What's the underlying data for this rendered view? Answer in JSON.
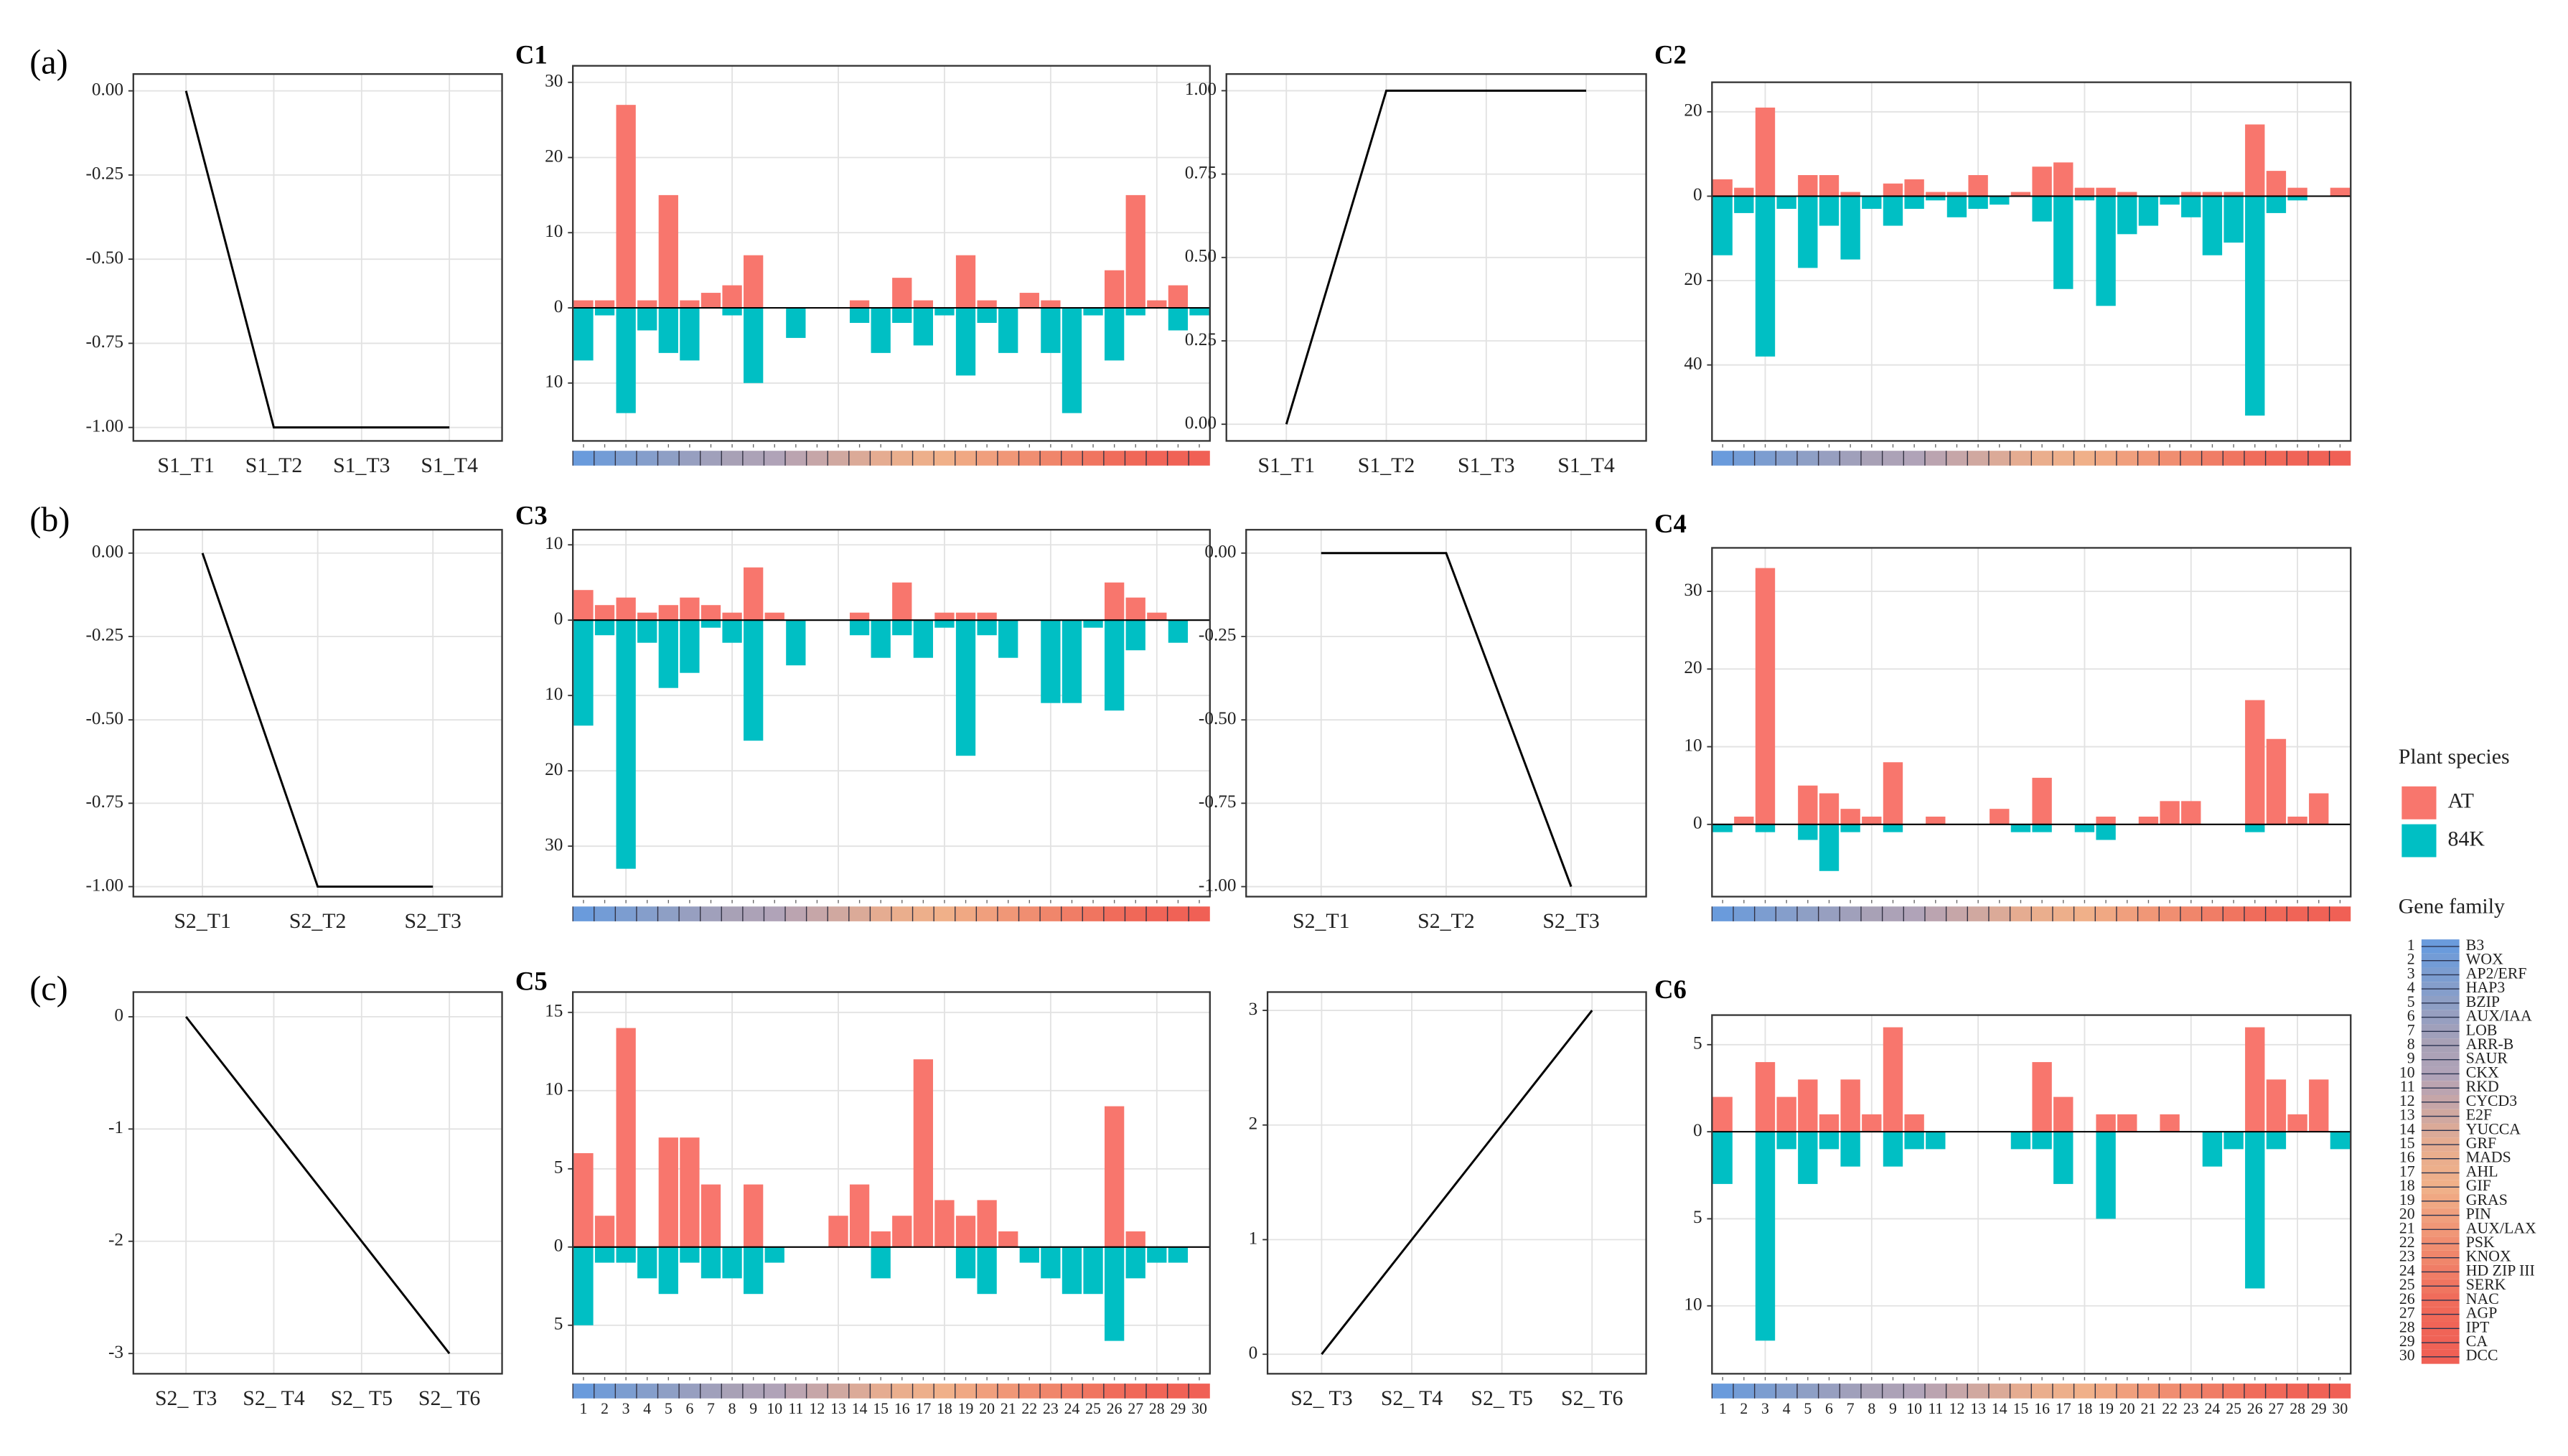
{
  "panel_labels": [
    "(a)",
    "(b)",
    "(c)"
  ],
  "legend": {
    "title": "Plant species"
  },
  "gene_family": {
    "title": "Gene family",
    "numbers": [
      1,
      2,
      3,
      4,
      5,
      6,
      7,
      8,
      9,
      10,
      11,
      12,
      13,
      14,
      15,
      16,
      17,
      18,
      19,
      20,
      21,
      22,
      23,
      24,
      25,
      26,
      27,
      28,
      29,
      30
    ],
    "names": [
      "B3",
      "WOX",
      "AP2/ERF",
      "HAP3",
      "BZIP",
      "AUX/IAA",
      "LOB",
      "ARR-B",
      "SAUR",
      "CKX",
      "RKD",
      "CYCD3",
      "E2F",
      "YUCCA",
      "GRF",
      "MADS",
      "AHL",
      "GIF",
      "GRAS",
      "PIN",
      "AUX/LAX",
      "PSK",
      "KNOX",
      "HD ZIP III",
      "SERK",
      "NAC",
      "AGP",
      "IPT",
      "CA",
      "DCC"
    ],
    "colors": [
      "#6a9bdc",
      "#739cd6",
      "#7c9dd0",
      "#859ecb",
      "#8e9fc5",
      "#979fc0",
      "#a0a0bb",
      "#a8a1b6",
      "#aca2b7",
      "#b0a3b8",
      "#bba4b0",
      "#c6a6a8",
      "#d0a8a0",
      "#dbaa98",
      "#e5ac91",
      "#eaae8d",
      "#edaf8b",
      "#f0b089",
      "#f0a883",
      "#f09f7d",
      "#f09777",
      "#f08e71",
      "#f0866b",
      "#f07d66",
      "#f07560",
      "#f06c5b",
      "#f06858",
      "#f06457",
      "#f06256",
      "#f06055"
    ]
  },
  "chart_data": [
    {
      "type": "line",
      "categories": [
        "S1_T1",
        "S1_T2",
        "S1_T3",
        "S1_T4"
      ],
      "values": [
        0,
        -1,
        -1,
        -1
      ],
      "color": "#000000",
      "ylim": [
        -1.04,
        0.05
      ],
      "yticks": [
        {
          "value": -1,
          "label": "-1.00"
        },
        -0.75,
        {
          "value": -0.5,
          "label": "-0.50"
        },
        -0.25,
        {
          "value": 0,
          "label": "0.00"
        }
      ],
      "grid": true
    },
    {
      "type": "bar",
      "title": "C1",
      "categories": [
        null,
        null,
        null,
        null,
        null,
        null,
        null,
        null,
        null,
        null,
        null,
        null,
        null,
        null,
        null,
        null,
        null,
        null,
        null,
        null,
        null,
        null,
        null,
        null,
        null,
        null,
        null,
        null,
        null,
        null
      ],
      "series": [
        {
          "name": "AT",
          "color": "#f8766d",
          "values": [
            1,
            1,
            27,
            1,
            15,
            1,
            2,
            3,
            7,
            0,
            0,
            0,
            0,
            1,
            0,
            4,
            1,
            0,
            7,
            1,
            0,
            2,
            1,
            0,
            0,
            5,
            15,
            1,
            3,
            0
          ]
        },
        {
          "name": "84K",
          "color": "#00bfc4",
          "values": [
            -7,
            -1,
            -14,
            -3,
            -6,
            -7,
            0,
            -1,
            -10,
            0,
            -4,
            0,
            0,
            -2,
            -6,
            -2,
            -5,
            -1,
            -9,
            -2,
            -6,
            0,
            -6,
            -14,
            -1,
            -7,
            -1,
            0,
            -3,
            -1
          ]
        }
      ],
      "ylim": [
        -17.7,
        32.2
      ],
      "yticks": [
        {
          "value": -10,
          "label": "10"
        },
        0,
        10,
        20,
        30
      ],
      "grid": true
    },
    {
      "type": "line",
      "categories": [
        "S1_T1",
        "S1_T2",
        "S1_T3",
        "S1_T4"
      ],
      "values": [
        0,
        1,
        1,
        1
      ],
      "color": "#000000",
      "ylim": [
        -0.05,
        1.05
      ],
      "yticks": [
        {
          "value": 0,
          "label": "0.00"
        },
        0.25,
        {
          "value": 0.5,
          "label": "0.50"
        },
        0.75,
        {
          "value": 1,
          "label": "1.00"
        }
      ],
      "grid": true
    },
    {
      "type": "bar",
      "title": "C2",
      "categories": [
        null,
        null,
        null,
        null,
        null,
        null,
        null,
        null,
        null,
        null,
        null,
        null,
        null,
        null,
        null,
        null,
        null,
        null,
        null,
        null,
        null,
        null,
        null,
        null,
        null,
        null,
        null,
        null,
        null,
        null
      ],
      "series": [
        {
          "name": "AT",
          "color": "#f8766d",
          "values": [
            4,
            2,
            21,
            0,
            5,
            5,
            1,
            0,
            3,
            4,
            1,
            1,
            5,
            0,
            1,
            7,
            8,
            2,
            2,
            1,
            0,
            0,
            1,
            1,
            1,
            17,
            6,
            2,
            0,
            2
          ]
        },
        {
          "name": "84K",
          "color": "#00bfc4",
          "values": [
            -14,
            -4,
            -38,
            -3,
            -17,
            -7,
            -15,
            -3,
            -7,
            -3,
            -1,
            -5,
            -3,
            -2,
            0,
            -6,
            -22,
            -1,
            -26,
            -9,
            -7,
            -2,
            -5,
            -14,
            -11,
            -52,
            -4,
            -1,
            0,
            0
          ]
        }
      ],
      "ylim": [
        -58,
        27
      ],
      "yticks": [
        {
          "value": -40,
          "label": "40"
        },
        {
          "value": -20,
          "label": "20"
        },
        0,
        20
      ],
      "grid": true
    },
    {
      "type": "line",
      "categories": [
        "S2_T1",
        "S2_T2",
        "S2_T3"
      ],
      "values": [
        0,
        -1,
        -1
      ],
      "color": "#000000",
      "ylim": [
        -1.03,
        0.07
      ],
      "yticks": [
        {
          "value": -1,
          "label": "-1.00"
        },
        -0.75,
        {
          "value": -0.5,
          "label": "-0.50"
        },
        -0.25,
        {
          "value": 0,
          "label": "0.00"
        }
      ],
      "grid": true
    },
    {
      "type": "bar",
      "title": "C3",
      "categories": [
        null,
        null,
        null,
        null,
        null,
        null,
        null,
        null,
        null,
        null,
        null,
        null,
        null,
        null,
        null,
        null,
        null,
        null,
        null,
        null,
        null,
        null,
        null,
        null,
        null,
        null,
        null,
        null,
        null,
        null
      ],
      "series": [
        {
          "name": "AT",
          "color": "#f8766d",
          "values": [
            4,
            2,
            3,
            1,
            2,
            3,
            2,
            1,
            7,
            1,
            0,
            0,
            0,
            1,
            0,
            5,
            0,
            1,
            1,
            1,
            0,
            0,
            0,
            0,
            0,
            5,
            3,
            1,
            0,
            0
          ]
        },
        {
          "name": "84K",
          "color": "#00bfc4",
          "values": [
            -14,
            -2,
            -33,
            -3,
            -9,
            -7,
            -1,
            -3,
            -16,
            0,
            -6,
            0,
            0,
            -2,
            -5,
            -2,
            -5,
            -1,
            -18,
            -2,
            -5,
            0,
            -11,
            -11,
            -1,
            -12,
            -4,
            0,
            -3,
            0
          ]
        }
      ],
      "ylim": [
        -36.7,
        12
      ],
      "yticks": [
        {
          "value": -30,
          "label": "30"
        },
        {
          "value": -20,
          "label": "20"
        },
        {
          "value": -10,
          "label": "10"
        },
        0,
        10
      ],
      "grid": true
    },
    {
      "type": "line",
      "categories": [
        "S2_T1",
        "S2_T2",
        "S2_T3"
      ],
      "values": [
        0,
        0,
        -1
      ],
      "color": "#000000",
      "ylim": [
        -1.03,
        0.07
      ],
      "yticks": [
        {
          "value": -1,
          "label": "-1.00"
        },
        -0.75,
        {
          "value": -0.5,
          "label": "-0.50"
        },
        -0.25,
        {
          "value": 0,
          "label": "0.00"
        }
      ],
      "grid": true
    },
    {
      "type": "bar",
      "title": "C4",
      "categories": [
        null,
        null,
        null,
        null,
        null,
        null,
        null,
        null,
        null,
        null,
        null,
        null,
        null,
        null,
        null,
        null,
        null,
        null,
        null,
        null,
        null,
        null,
        null,
        null,
        null,
        null,
        null,
        null,
        null,
        null
      ],
      "series": [
        {
          "name": "AT",
          "color": "#f8766d",
          "values": [
            0,
            1,
            33,
            0,
            5,
            4,
            2,
            1,
            8,
            0,
            1,
            0,
            0,
            2,
            0,
            6,
            0,
            0,
            1,
            0,
            1,
            3,
            3,
            0,
            0,
            16,
            11,
            1,
            4,
            0
          ]
        },
        {
          "name": "84K",
          "color": "#00bfc4",
          "values": [
            -1,
            0,
            -1,
            0,
            -2,
            -6,
            -1,
            0,
            -1,
            0,
            0,
            0,
            0,
            0,
            -1,
            -1,
            0,
            -1,
            -2,
            0,
            0,
            0,
            0,
            0,
            0,
            -1,
            0,
            0,
            0,
            0
          ]
        }
      ],
      "ylim": [
        -9.3,
        35.6
      ],
      "yticks": [
        0,
        10,
        20,
        30
      ],
      "grid": true
    },
    {
      "type": "line",
      "categories": [
        "S2_ T3",
        "S2_ T4",
        "S2_ T5",
        "S2_ T6"
      ],
      "values": [
        0,
        -1,
        -2,
        -3
      ],
      "color": "#000000",
      "ylim": [
        -3.18,
        0.22
      ],
      "yticks": [
        -3,
        -2,
        -1,
        0
      ],
      "grid": true
    },
    {
      "type": "bar",
      "title": "C5",
      "categories": [
        1,
        2,
        3,
        4,
        5,
        6,
        7,
        8,
        9,
        10,
        11,
        12,
        13,
        14,
        15,
        16,
        17,
        18,
        19,
        20,
        21,
        22,
        23,
        24,
        25,
        26,
        27,
        28,
        29,
        30
      ],
      "series": [
        {
          "name": "AT",
          "color": "#f8766d",
          "values": [
            6,
            2,
            14,
            0,
            7,
            7,
            4,
            0,
            4,
            0,
            0,
            0,
            2,
            4,
            1,
            2,
            12,
            3,
            2,
            3,
            1,
            0,
            0,
            0,
            0,
            9,
            1,
            0,
            0,
            0
          ]
        },
        {
          "name": "84K",
          "color": "#00bfc4",
          "values": [
            -5,
            -1,
            -1,
            -2,
            -3,
            -1,
            -2,
            -2,
            -3,
            -1,
            0,
            0,
            0,
            0,
            -2,
            0,
            0,
            0,
            -2,
            -3,
            0,
            -1,
            -2,
            -3,
            -3,
            -6,
            -2,
            -1,
            -1,
            0
          ]
        }
      ],
      "ylim": [
        -8.1,
        16.3
      ],
      "yticks": [
        {
          "value": -5,
          "label": "5"
        },
        0,
        5,
        10,
        15
      ],
      "grid": true
    },
    {
      "type": "line",
      "categories": [
        "S2_ T3",
        "S2_ T4",
        "S2_ T5",
        "S2_ T6"
      ],
      "values": [
        0,
        1,
        2,
        3
      ],
      "color": "#000000",
      "ylim": [
        -0.17,
        3.16
      ],
      "yticks": [
        0,
        1,
        2,
        3
      ],
      "grid": true
    },
    {
      "type": "bar",
      "title": "C6",
      "categories": [
        1,
        2,
        3,
        4,
        5,
        6,
        7,
        8,
        9,
        10,
        11,
        12,
        13,
        14,
        15,
        16,
        17,
        18,
        19,
        20,
        21,
        22,
        23,
        24,
        25,
        26,
        27,
        28,
        29,
        30
      ],
      "series": [
        {
          "name": "AT",
          "color": "#f8766d",
          "values": [
            2,
            0,
            4,
            2,
            3,
            1,
            3,
            1,
            6,
            1,
            0,
            0,
            0,
            0,
            0,
            4,
            2,
            0,
            1,
            1,
            0,
            1,
            0,
            0,
            0,
            6,
            3,
            1,
            3,
            0
          ]
        },
        {
          "name": "84K",
          "color": "#00bfc4",
          "values": [
            -3,
            0,
            -12,
            -1,
            -3,
            -1,
            -2,
            0,
            -2,
            -1,
            -1,
            0,
            0,
            0,
            -1,
            -1,
            -3,
            0,
            -5,
            0,
            0,
            0,
            0,
            -2,
            -1,
            -9,
            -1,
            0,
            0,
            -1
          ]
        }
      ],
      "ylim": [
        -13.9,
        6.7
      ],
      "yticks": [
        {
          "value": -10,
          "label": "10"
        },
        {
          "value": -5,
          "label": "5"
        },
        0,
        5
      ],
      "grid": true
    }
  ]
}
